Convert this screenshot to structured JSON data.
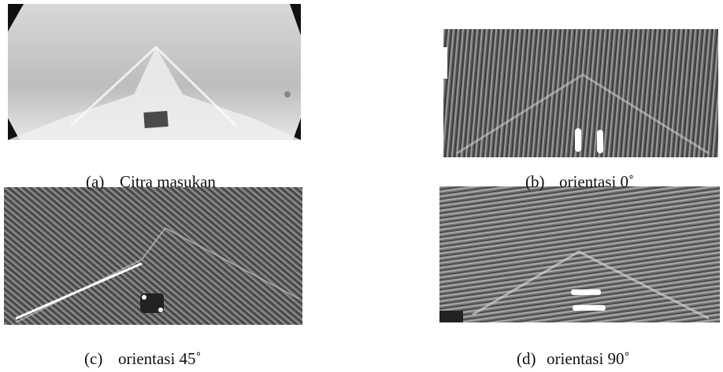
{
  "panels": [
    {
      "label": "(a)",
      "caption": "Citra masukan"
    },
    {
      "label": "(b)",
      "caption": "orientasi 0˚"
    },
    {
      "label": "(c)",
      "caption": "orientasi 45˚"
    },
    {
      "label": "(d)",
      "caption": "orientasi 90˚"
    }
  ]
}
